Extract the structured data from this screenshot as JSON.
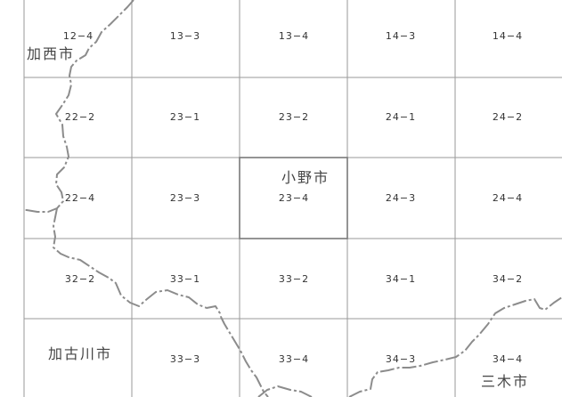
{
  "cells": [
    {
      "label": "12−4"
    },
    {
      "label": "13−3"
    },
    {
      "label": "13−4"
    },
    {
      "label": "14−3"
    },
    {
      "label": "14−4"
    },
    {
      "label": "22−2"
    },
    {
      "label": "23−1"
    },
    {
      "label": "23−2"
    },
    {
      "label": "24−1"
    },
    {
      "label": "24−2"
    },
    {
      "label": "22−4"
    },
    {
      "label": "23−3"
    },
    {
      "label": "23−4"
    },
    {
      "label": "24−3"
    },
    {
      "label": "24−4"
    },
    {
      "label": "32−2"
    },
    {
      "label": "33−1"
    },
    {
      "label": "33−2"
    },
    {
      "label": "34−1"
    },
    {
      "label": "34−2"
    },
    {
      "label": ""
    },
    {
      "label": "33−3"
    },
    {
      "label": "33−4"
    },
    {
      "label": "34−3"
    },
    {
      "label": "34−4"
    }
  ],
  "cities": {
    "kasai": "加西市",
    "ono": "小野市",
    "kakogawa": "加古川市",
    "miki": "三木市"
  },
  "highlighted_cell": "23−4"
}
